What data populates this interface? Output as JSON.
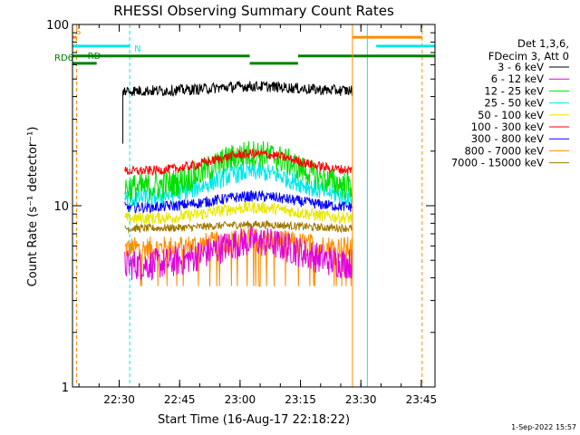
{
  "chart_data": {
    "type": "line",
    "title": "RHESSI Observing Summary Count Rates",
    "xlabel": "Start Time (16-Aug-17 22:18:22)",
    "ylabel": "Count Rate (s⁻¹ detector⁻¹)",
    "yscale": "log",
    "ylim": [
      1,
      100
    ],
    "xlim": [
      0,
      90
    ],
    "x_unit": "minutes after 22:18:22",
    "x_ticks": [
      {
        "v": 11.6,
        "label": "22:30"
      },
      {
        "v": 26.6,
        "label": "22:45"
      },
      {
        "v": 41.6,
        "label": "23:00"
      },
      {
        "v": 56.6,
        "label": "23:15"
      },
      {
        "v": 71.6,
        "label": "23:30"
      },
      {
        "v": 86.6,
        "label": "23:45"
      }
    ],
    "y_ticks": [
      {
        "v": 1,
        "label": "1"
      },
      {
        "v": 10,
        "label": "10"
      },
      {
        "v": 100,
        "label": "100"
      }
    ],
    "legend_header": [
      "Det 1,3,6,",
      "FDecim 3, Att 0"
    ],
    "legend_position": "right",
    "timestamp": "1-Sep-2022 15:57",
    "series": [
      {
        "name": "3 - 6 keV",
        "color": "#000000",
        "base": 43,
        "amp": 0.06,
        "noise": 0.07,
        "start": 12.5,
        "end": 69.4
      },
      {
        "name": "6 - 12 keV",
        "color": "#e000e0",
        "base": 4.7,
        "amp": 0.35,
        "noise": 0.2,
        "start": 13.0,
        "end": 69.4
      },
      {
        "name": "12 - 25 keV",
        "color": "#00e000",
        "base": 12.5,
        "amp": 0.55,
        "noise": 0.18,
        "start": 13.0,
        "end": 69.4
      },
      {
        "name": "25 - 50 keV",
        "color": "#00e8e8",
        "base": 11,
        "amp": 0.4,
        "noise": 0.12,
        "start": 13.0,
        "end": 69.4
      },
      {
        "name": "50 - 100 keV",
        "color": "#e8e800",
        "base": 8.5,
        "amp": 0.15,
        "noise": 0.08,
        "start": 13.0,
        "end": 69.4
      },
      {
        "name": "100 - 300 keV",
        "color": "#ff0000",
        "base": 15.5,
        "amp": 0.25,
        "noise": 0.06,
        "start": 13.0,
        "end": 69.4
      },
      {
        "name": "300 - 800 keV",
        "color": "#0000ff",
        "base": 9.8,
        "amp": 0.15,
        "noise": 0.07,
        "start": 13.0,
        "end": 69.4
      },
      {
        "name": "800 - 7000 keV",
        "color": "#ff8c00",
        "base": 5.8,
        "amp": 0.12,
        "noise": 0.15,
        "start": 13.0,
        "end": 69.4
      },
      {
        "name": "7000 - 15000 keV",
        "color": "#a07800",
        "base": 7.5,
        "amp": 0.05,
        "noise": 0.05,
        "start": 13.0,
        "end": 69.4
      }
    ],
    "annotations": [
      {
        "id": "saa",
        "label": "S",
        "color": "#ff8c00",
        "lines": [
          1.0,
          86.8
        ],
        "bars": [
          [
            0,
            1.0
          ],
          [
            69.5,
            86.8
          ]
        ],
        "y": 85
      },
      {
        "id": "night",
        "label": "N",
        "color": "#00e8e8",
        "lines": [
          14.2,
          73.2
        ],
        "bars": [
          [
            0,
            14.2
          ],
          [
            75.4,
            90
          ]
        ],
        "y": 76
      },
      {
        "id": "rd",
        "label": "RD",
        "color": "#008000",
        "bars": [
          [
            0,
            44.0
          ],
          [
            56.0,
            90
          ]
        ],
        "y": 67
      },
      {
        "id": "rd6",
        "label": "RD6",
        "color": "#008000",
        "bars": [
          [
            0,
            6.0
          ],
          [
            44.0,
            56.0
          ]
        ],
        "y": 61
      }
    ],
    "attenuator_lines": [
      {
        "x": 69.5,
        "color": "#ff8c00"
      },
      {
        "x": 0.0,
        "color": "#00e8e8"
      }
    ]
  }
}
